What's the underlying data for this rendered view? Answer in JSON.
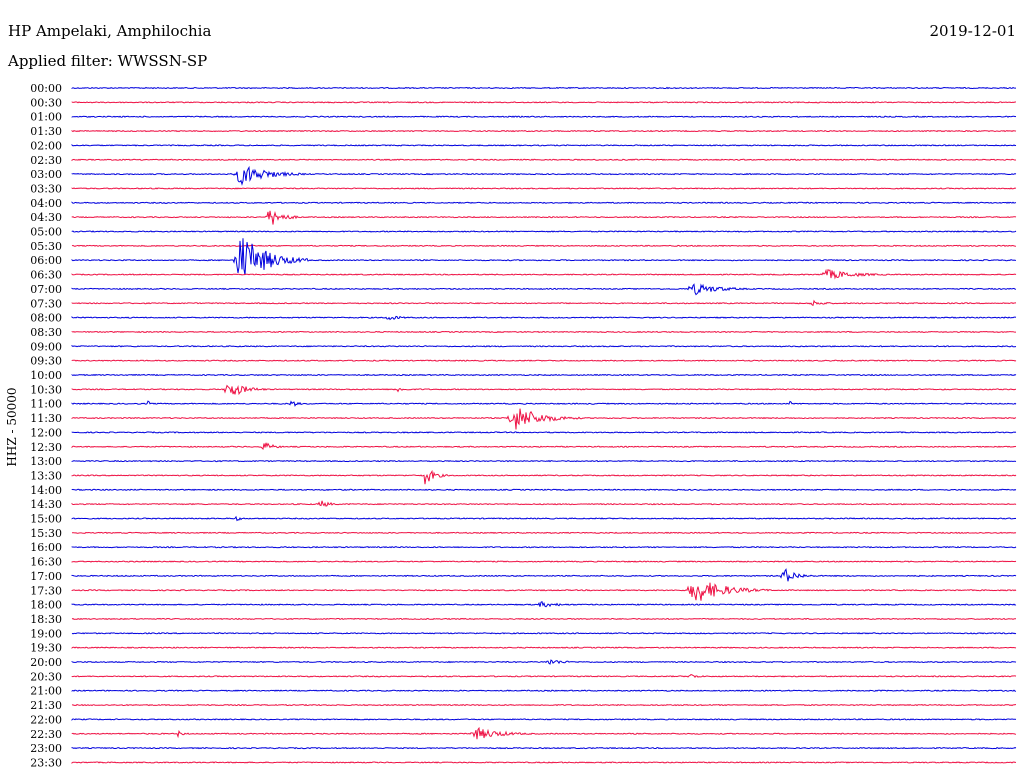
{
  "header": {
    "station": "HP Ampelaki, Amphilochia",
    "filter": "Applied filter: WWSSN-SP",
    "date": "2019-12-01",
    "channel_label": "HHZ - 50000"
  },
  "colors": {
    "even": "#0000dd",
    "odd": "#ee1144"
  },
  "chart_data": {
    "type": "line",
    "title": "HP Ampelaki, Amphilochia",
    "subtitle": "Applied filter: WWSSN-SP",
    "ylabel": "HHZ - 50000",
    "xlabel": "",
    "rows": [
      "00:00",
      "00:30",
      "01:00",
      "01:30",
      "02:00",
      "02:30",
      "03:00",
      "03:30",
      "04:00",
      "04:30",
      "05:00",
      "05:30",
      "06:00",
      "06:30",
      "07:00",
      "07:30",
      "08:00",
      "08:30",
      "09:00",
      "09:30",
      "10:00",
      "10:30",
      "11:00",
      "11:30",
      "12:00",
      "12:30",
      "13:00",
      "13:30",
      "14:00",
      "14:30",
      "15:00",
      "15:30",
      "16:00",
      "16:30",
      "17:00",
      "17:30",
      "18:00",
      "18:30",
      "19:00",
      "19:30",
      "20:00",
      "20:30",
      "21:00",
      "21:30",
      "22:00",
      "22:30",
      "23:00",
      "23:30"
    ],
    "events": [
      {
        "row": 6,
        "pos": 0.17,
        "amp": 11,
        "dur": 0.08
      },
      {
        "row": 9,
        "pos": 0.205,
        "amp": 10,
        "dur": 0.04
      },
      {
        "row": 12,
        "pos": 0.17,
        "amp": 26,
        "dur": 0.08
      },
      {
        "row": 13,
        "pos": 0.79,
        "amp": 5,
        "dur": 0.09
      },
      {
        "row": 14,
        "pos": 0.65,
        "amp": 6,
        "dur": 0.08
      },
      {
        "row": 15,
        "pos": 0.78,
        "amp": 3,
        "dur": 0.04
      },
      {
        "row": 16,
        "pos": 0.33,
        "amp": 3,
        "dur": 0.04
      },
      {
        "row": 21,
        "pos": 0.16,
        "amp": 9,
        "dur": 0.05
      },
      {
        "row": 21,
        "pos": 0.34,
        "amp": 3,
        "dur": 0.03
      },
      {
        "row": 22,
        "pos": 0.08,
        "amp": 8,
        "dur": 0.003
      },
      {
        "row": 22,
        "pos": 0.23,
        "amp": 4,
        "dur": 0.02
      },
      {
        "row": 22,
        "pos": 0.76,
        "amp": 8,
        "dur": 0.003
      },
      {
        "row": 23,
        "pos": 0.46,
        "amp": 13,
        "dur": 0.08
      },
      {
        "row": 25,
        "pos": 0.2,
        "amp": 5,
        "dur": 0.03
      },
      {
        "row": 27,
        "pos": 0.37,
        "amp": 10,
        "dur": 0.03
      },
      {
        "row": 29,
        "pos": 0.26,
        "amp": 4,
        "dur": 0.03
      },
      {
        "row": 30,
        "pos": 0.17,
        "amp": 3,
        "dur": 0.02
      },
      {
        "row": 34,
        "pos": 0.75,
        "amp": 8,
        "dur": 0.04
      },
      {
        "row": 35,
        "pos": 0.65,
        "amp": 13,
        "dur": 0.09
      },
      {
        "row": 36,
        "pos": 0.49,
        "amp": 3,
        "dur": 0.06
      },
      {
        "row": 40,
        "pos": 0.5,
        "amp": 3,
        "dur": 0.05
      },
      {
        "row": 41,
        "pos": 0.65,
        "amp": 3,
        "dur": 0.03
      },
      {
        "row": 45,
        "pos": 0.42,
        "amp": 6,
        "dur": 0.08
      },
      {
        "row": 45,
        "pos": 0.11,
        "amp": 3,
        "dur": 0.02
      }
    ]
  }
}
